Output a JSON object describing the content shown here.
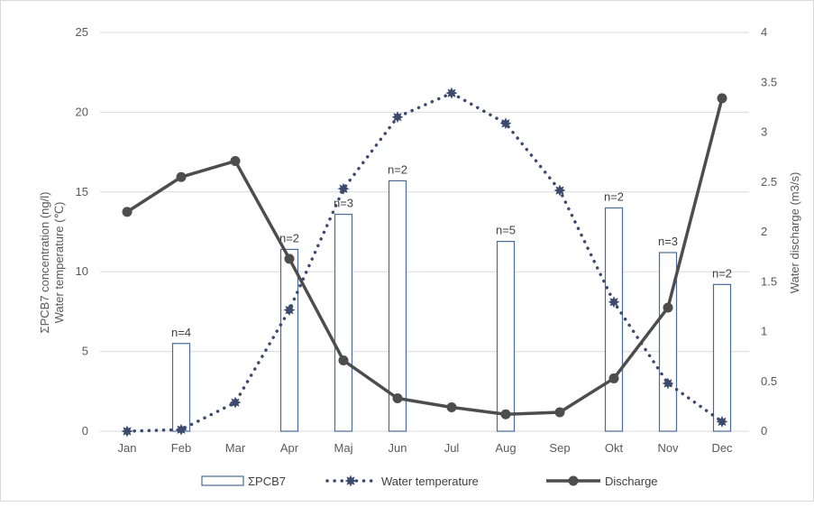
{
  "chart_data": {
    "type": "bar",
    "categories": [
      "Jan",
      "Feb",
      "Mar",
      "Apr",
      "Maj",
      "Jun",
      "Jul",
      "Aug",
      "Sep",
      "Okt",
      "Nov",
      "Dec"
    ],
    "ylabel_left": [
      "ΣPCB7 concentration (ng/l)",
      "Water temperature (℃)"
    ],
    "ylabel_right": "Water discharge (m3/s)",
    "ylim_left": [
      0,
      25
    ],
    "yticks_left": [
      "0",
      "5",
      "10",
      "15",
      "20",
      "25"
    ],
    "ylim_right": [
      0,
      4
    ],
    "yticks_right": [
      "0",
      "0.5",
      "1",
      "1.5",
      "2",
      "2.5",
      "3",
      "3.5",
      "4"
    ],
    "grid": true,
    "legend_position": "bottom",
    "series": [
      {
        "name": "ΣPCB7",
        "type": "bar",
        "axis": "left",
        "values": [
          null,
          5.5,
          null,
          11.4,
          13.6,
          15.7,
          null,
          11.9,
          null,
          14.0,
          11.2,
          9.2
        ],
        "labels": [
          null,
          "n=4",
          null,
          "n=2",
          "n=3",
          "n=2",
          null,
          "n=5",
          null,
          "n=2",
          "n=3",
          "n=2"
        ]
      },
      {
        "name": "Water temperature",
        "type": "line",
        "style": "dotted",
        "axis": "left",
        "values": [
          0.0,
          0.1,
          1.8,
          7.6,
          15.2,
          19.7,
          21.2,
          19.3,
          15.1,
          8.1,
          3.0,
          0.6
        ]
      },
      {
        "name": "Discharge",
        "type": "line",
        "style": "solid",
        "axis": "right",
        "values": [
          2.2,
          2.55,
          2.71,
          1.73,
          0.71,
          0.33,
          0.24,
          0.17,
          0.19,
          0.53,
          1.24,
          3.34
        ]
      }
    ],
    "colors": {
      "bar_stroke": "#4a6a9a",
      "temperature": "#3c4a6e",
      "discharge": "#4d4d4d",
      "grid": "#d9d9d9",
      "axis_text": "#595959"
    }
  }
}
